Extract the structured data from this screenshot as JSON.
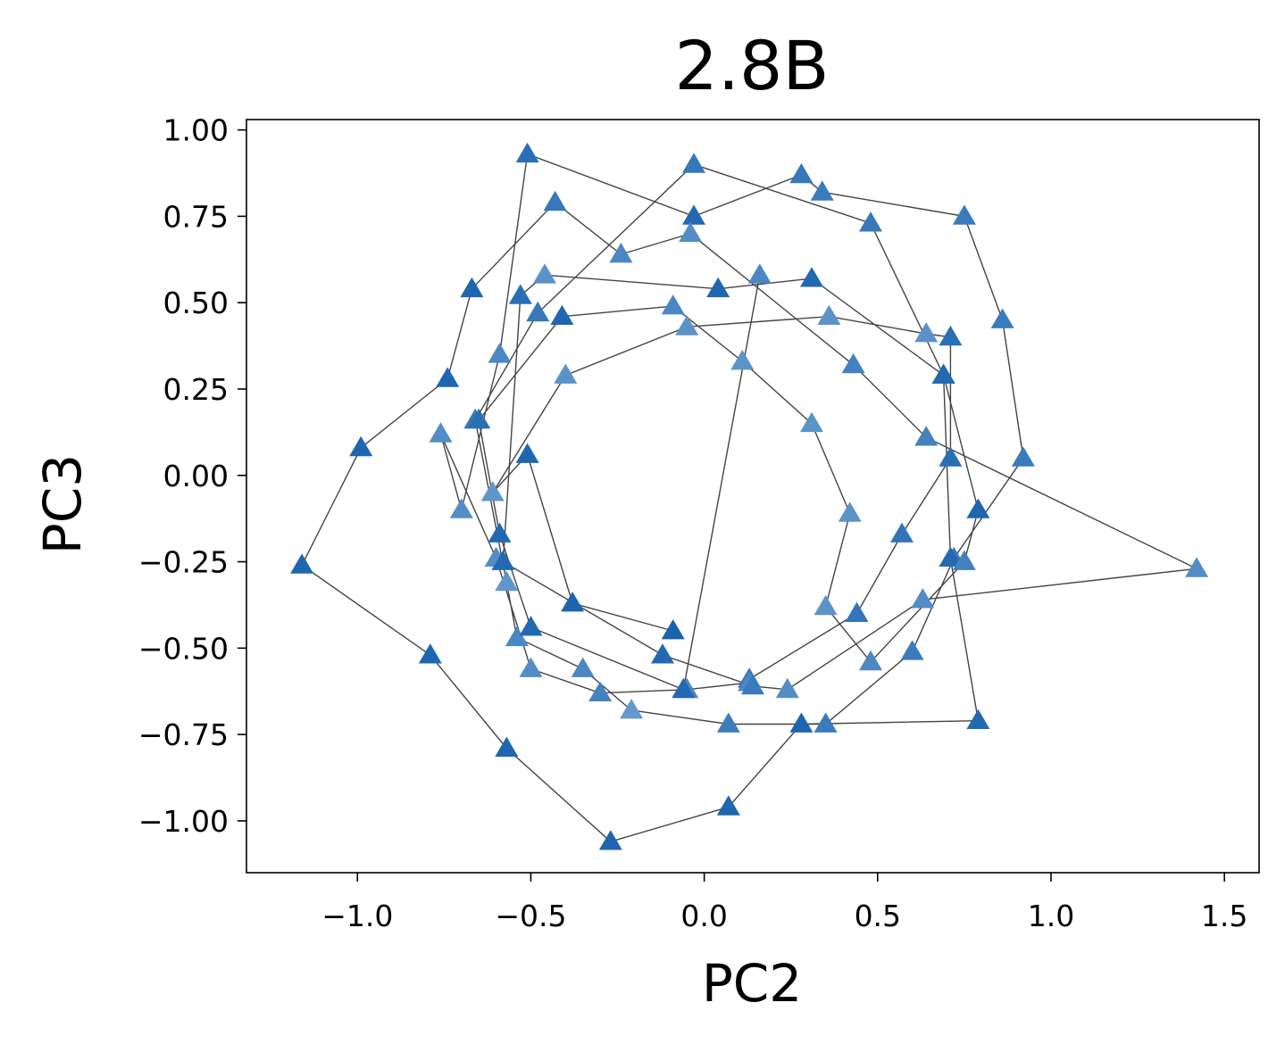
{
  "chart_data": {
    "type": "scatter",
    "title": "2.8B",
    "xlabel": "PC2",
    "ylabel": "PC3",
    "xlim": [
      -1.32,
      1.6
    ],
    "ylim": [
      -1.15,
      1.03
    ],
    "xticks": [
      -1.0,
      -0.5,
      0.0,
      0.5,
      1.0,
      1.5
    ],
    "xtick_labels": [
      "−1.0",
      "−0.5",
      "0.0",
      "0.5",
      "1.0",
      "1.5"
    ],
    "yticks": [
      1.0,
      0.75,
      0.5,
      0.25,
      0.0,
      -0.25,
      -0.5,
      -0.75,
      -1.0
    ],
    "ytick_labels": [
      "1.00",
      "0.75",
      "0.50",
      "0.25",
      "0.00",
      "−0.25",
      "−0.50",
      "−0.75",
      "−1.00"
    ],
    "grid": false,
    "marker": "triangle-up",
    "connected": true,
    "line_color": "#444444",
    "colors": {
      "dark": "#1a63ad",
      "light": "#6b9fd0"
    },
    "points": [
      {
        "x": -0.09,
        "y": -0.45,
        "shade": 0.0
      },
      {
        "x": -0.38,
        "y": -0.37,
        "shade": 0.03
      },
      {
        "x": -0.51,
        "y": 0.06,
        "shade": 0.05
      },
      {
        "x": -0.61,
        "y": -0.05,
        "shade": 0.85
      },
      {
        "x": -0.4,
        "y": 0.29,
        "shade": 0.8
      },
      {
        "x": -0.05,
        "y": 0.43,
        "shade": 0.8
      },
      {
        "x": 0.36,
        "y": 0.46,
        "shade": 0.8
      },
      {
        "x": 0.64,
        "y": 0.41,
        "shade": 0.8
      },
      {
        "x": 0.71,
        "y": 0.4,
        "shade": 0.2
      },
      {
        "x": 0.71,
        "y": 0.05,
        "shade": 0.2
      },
      {
        "x": 0.57,
        "y": -0.17,
        "shade": 0.3
      },
      {
        "x": 0.44,
        "y": -0.4,
        "shade": 0.3
      },
      {
        "x": 0.13,
        "y": -0.59,
        "shade": 0.3
      },
      {
        "x": 0.13,
        "y": -0.6,
        "shade": 0.6
      },
      {
        "x": -0.05,
        "y": -0.62,
        "shade": 0.6
      },
      {
        "x": -0.3,
        "y": -0.63,
        "shade": 0.5
      },
      {
        "x": -0.5,
        "y": -0.56,
        "shade": 0.7
      },
      {
        "x": -0.6,
        "y": -0.24,
        "shade": 0.7
      },
      {
        "x": -0.76,
        "y": 0.12,
        "shade": 0.7
      },
      {
        "x": -0.7,
        "y": -0.1,
        "shade": 0.7
      },
      {
        "x": -0.59,
        "y": 0.35,
        "shade": 0.6
      },
      {
        "x": -0.51,
        "y": 0.93,
        "shade": 0.2
      },
      {
        "x": -0.03,
        "y": 0.75,
        "shade": 0.1
      },
      {
        "x": 0.28,
        "y": 0.87,
        "shade": 0.35
      },
      {
        "x": 0.34,
        "y": 0.82,
        "shade": 0.4
      },
      {
        "x": 0.75,
        "y": 0.75,
        "shade": 0.4
      },
      {
        "x": 0.86,
        "y": 0.45,
        "shade": 0.4
      },
      {
        "x": 0.92,
        "y": 0.05,
        "shade": 0.4
      },
      {
        "x": 0.72,
        "y": -0.24,
        "shade": 0.4
      },
      {
        "x": 0.6,
        "y": -0.51,
        "shade": 0.4
      },
      {
        "x": 0.35,
        "y": -0.72,
        "shade": 0.4
      },
      {
        "x": 0.07,
        "y": -0.72,
        "shade": 0.45
      },
      {
        "x": -0.21,
        "y": -0.68,
        "shade": 0.9
      },
      {
        "x": -0.35,
        "y": -0.56,
        "shade": 0.6
      },
      {
        "x": -0.54,
        "y": -0.47,
        "shade": 0.6
      },
      {
        "x": -0.57,
        "y": -0.31,
        "shade": 0.85
      },
      {
        "x": -0.66,
        "y": 0.16,
        "shade": 0.35
      },
      {
        "x": -0.48,
        "y": 0.47,
        "shade": 0.35
      },
      {
        "x": -0.03,
        "y": 0.9,
        "shade": 0.35
      },
      {
        "x": 0.48,
        "y": 0.73,
        "shade": 0.35
      },
      {
        "x": 0.69,
        "y": 0.29,
        "shade": 0.1
      },
      {
        "x": 0.71,
        "y": -0.24,
        "shade": 0.1
      },
      {
        "x": 0.79,
        "y": -0.71,
        "shade": 0.1
      },
      {
        "x": 0.28,
        "y": -0.72,
        "shade": 0.05
      },
      {
        "x": 0.07,
        "y": -0.96,
        "shade": 0.05
      },
      {
        "x": -0.27,
        "y": -1.06,
        "shade": 0.05
      },
      {
        "x": -0.57,
        "y": -0.79,
        "shade": 0.05
      },
      {
        "x": -0.79,
        "y": -0.52,
        "shade": 0.05
      },
      {
        "x": -1.16,
        "y": -0.26,
        "shade": 0.05
      },
      {
        "x": -0.99,
        "y": 0.08,
        "shade": 0.05
      },
      {
        "x": -0.74,
        "y": 0.28,
        "shade": 0.05
      },
      {
        "x": -0.67,
        "y": 0.54,
        "shade": 0.05
      },
      {
        "x": -0.43,
        "y": 0.79,
        "shade": 0.35
      },
      {
        "x": -0.24,
        "y": 0.64,
        "shade": 0.6
      },
      {
        "x": -0.04,
        "y": 0.7,
        "shade": 0.7
      },
      {
        "x": 0.43,
        "y": 0.32,
        "shade": 0.5
      },
      {
        "x": 0.64,
        "y": 0.11,
        "shade": 0.5
      },
      {
        "x": 1.42,
        "y": -0.27,
        "shade": 0.7
      },
      {
        "x": 0.63,
        "y": -0.36,
        "shade": 0.7
      },
      {
        "x": 0.24,
        "y": -0.62,
        "shade": 0.7
      },
      {
        "x": 0.14,
        "y": -0.61,
        "shade": 0.4
      },
      {
        "x": -0.12,
        "y": -0.52,
        "shade": 0.1
      },
      {
        "x": -0.58,
        "y": -0.25,
        "shade": 0.1
      },
      {
        "x": -0.53,
        "y": 0.52,
        "shade": 0.2
      },
      {
        "x": -0.46,
        "y": 0.58,
        "shade": 0.8
      },
      {
        "x": 0.04,
        "y": 0.54,
        "shade": 0.05
      },
      {
        "x": 0.31,
        "y": 0.57,
        "shade": 0.1
      },
      {
        "x": 0.69,
        "y": 0.29,
        "shade": 0.1
      },
      {
        "x": 0.79,
        "y": -0.1,
        "shade": 0.05
      },
      {
        "x": 0.75,
        "y": -0.25,
        "shade": 0.5
      },
      {
        "x": 0.48,
        "y": -0.54,
        "shade": 0.6
      },
      {
        "x": 0.35,
        "y": -0.38,
        "shade": 0.8
      },
      {
        "x": 0.42,
        "y": -0.11,
        "shade": 0.8
      },
      {
        "x": 0.31,
        "y": 0.15,
        "shade": 0.8
      },
      {
        "x": 0.11,
        "y": 0.33,
        "shade": 0.8
      },
      {
        "x": -0.09,
        "y": 0.49,
        "shade": 0.6
      },
      {
        "x": -0.41,
        "y": 0.46,
        "shade": 0.05
      },
      {
        "x": -0.65,
        "y": 0.16,
        "shade": 0.2
      },
      {
        "x": -0.59,
        "y": -0.17,
        "shade": 0.1
      },
      {
        "x": -0.5,
        "y": -0.44,
        "shade": 0.1
      },
      {
        "x": -0.06,
        "y": -0.62,
        "shade": 0.1
      },
      {
        "x": 0.16,
        "y": 0.58,
        "shade": 0.6
      }
    ]
  }
}
